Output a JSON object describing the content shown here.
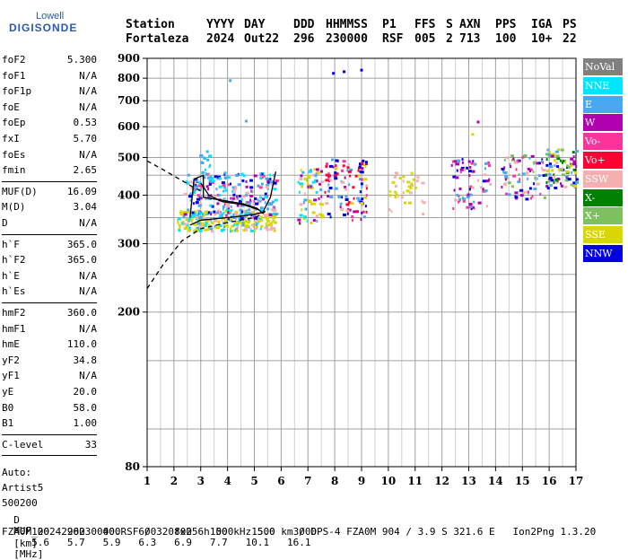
{
  "logo": {
    "line1": "Lowell",
    "line2": "DIGISONDE"
  },
  "header": {
    "labels": [
      "Station",
      "YYYY",
      "DAY",
      "DDD",
      "HHMMSS",
      "P1",
      "FFS",
      "S",
      "AXN",
      "PPS",
      "IGA",
      "PS"
    ],
    "values": [
      "Fortaleza",
      "2024",
      "Out22",
      "296",
      "230000",
      "RSF",
      "005",
      "2",
      "713",
      "100",
      "10+",
      "22"
    ]
  },
  "params": {
    "group1": [
      {
        "k": "foF2",
        "v": "5.300"
      },
      {
        "k": "foF1",
        "v": "N/A"
      },
      {
        "k": "foF1p",
        "v": "N/A"
      },
      {
        "k": "foE",
        "v": "N/A"
      },
      {
        "k": "foEp",
        "v": "0.53"
      },
      {
        "k": "fxI",
        "v": "5.70"
      },
      {
        "k": "foEs",
        "v": "N/A"
      },
      {
        "k": "fmin",
        "v": "2.65"
      }
    ],
    "group2": [
      {
        "k": "MUF(D)",
        "v": "16.09"
      },
      {
        "k": "M(D)",
        "v": "3.04"
      },
      {
        "k": "D",
        "v": "N/A"
      }
    ],
    "group3": [
      {
        "k": "h`F",
        "v": "365.0"
      },
      {
        "k": "h`F2",
        "v": "365.0"
      },
      {
        "k": "h`E",
        "v": "N/A"
      },
      {
        "k": "h`Es",
        "v": "N/A"
      }
    ],
    "group4": [
      {
        "k": "hmF2",
        "v": "360.0"
      },
      {
        "k": "hmF1",
        "v": "N/A"
      },
      {
        "k": "hmE",
        "v": "110.0"
      },
      {
        "k": "yF2",
        "v": "34.8"
      },
      {
        "k": "yF1",
        "v": "N/A"
      },
      {
        "k": "yE",
        "v": "20.0"
      },
      {
        "k": "B0",
        "v": "58.0"
      },
      {
        "k": "B1",
        "v": "1.00"
      }
    ],
    "group5": [
      {
        "k": "C-level",
        "v": "33"
      }
    ],
    "auto": [
      "Auto:",
      "Artist5",
      "500200"
    ]
  },
  "legend": [
    {
      "label": "NoVal",
      "color": "#808080"
    },
    {
      "label": "NNE",
      "color": "#00e5ff"
    },
    {
      "label": "E",
      "color": "#4aa8f0"
    },
    {
      "label": "W",
      "color": "#b000b0"
    },
    {
      "label": "Vo-",
      "color": "#ff3399"
    },
    {
      "label": "Vo+",
      "color": "#ff0033"
    },
    {
      "label": "SSW",
      "color": "#f4b0b0"
    },
    {
      "label": "X-",
      "color": "#008000"
    },
    {
      "label": "X+",
      "color": "#7cc060"
    },
    {
      "label": "SSE",
      "color": "#d8d800"
    },
    {
      "label": "NNW",
      "color": "#0000e0"
    }
  ],
  "chart_data": {
    "type": "scatter",
    "x_ticks": [
      "1",
      "2",
      "3",
      "4",
      "5",
      "6",
      "7",
      "8",
      "9",
      "10",
      "11",
      "12",
      "13",
      "14",
      "15",
      "16",
      "17"
    ],
    "y_ticks": [
      "80",
      "200",
      "300",
      "400",
      "500",
      "600",
      "700",
      "800",
      "900"
    ],
    "xlim": [
      1,
      17
    ],
    "ylim_log": [
      80,
      900
    ],
    "grid": true,
    "legend_position": "right",
    "clusters": [
      {
        "fmin": 2.1,
        "fmax": 5.8,
        "hmin": 325,
        "hmax": 370,
        "n": 260,
        "colors": [
          "SSE",
          "SSE",
          "SSE",
          "SSW",
          "E",
          "NNE"
        ]
      },
      {
        "fmin": 2.3,
        "fmax": 5.8,
        "hmin": 350,
        "hmax": 460,
        "n": 240,
        "colors": [
          "E",
          "NNE",
          "SSW",
          "W",
          "Vo-",
          "NNW",
          "E"
        ]
      },
      {
        "fmin": 2.9,
        "fmax": 3.4,
        "hmin": 440,
        "hmax": 520,
        "n": 18,
        "colors": [
          "E",
          "NNE"
        ]
      },
      {
        "fmin": 6.6,
        "fmax": 7.5,
        "hmin": 340,
        "hmax": 470,
        "n": 70,
        "colors": [
          "SSE",
          "SSE",
          "SSW",
          "E",
          "W",
          "NNE"
        ]
      },
      {
        "fmin": 7.6,
        "fmax": 9.2,
        "hmin": 340,
        "hmax": 500,
        "n": 110,
        "colors": [
          "SSE",
          "SSW",
          "W",
          "E",
          "NNW",
          "Vo-",
          "Vo+"
        ]
      },
      {
        "fmin": 10.0,
        "fmax": 11.3,
        "hmin": 360,
        "hmax": 460,
        "n": 35,
        "colors": [
          "SSE",
          "SSW"
        ]
      },
      {
        "fmin": 12.3,
        "fmax": 13.8,
        "hmin": 370,
        "hmax": 500,
        "n": 70,
        "colors": [
          "W",
          "E",
          "NNW",
          "Vo-",
          "SSW"
        ]
      },
      {
        "fmin": 14.2,
        "fmax": 15.8,
        "hmin": 390,
        "hmax": 510,
        "n": 80,
        "colors": [
          "W",
          "E",
          "Vo-",
          "SSW",
          "NNW",
          "X+"
        ]
      },
      {
        "fmin": 15.8,
        "fmax": 17.0,
        "hmin": 420,
        "hmax": 530,
        "n": 90,
        "colors": [
          "SSE",
          "NNW",
          "E",
          "W",
          "X-",
          "X+",
          "SSW"
        ]
      }
    ],
    "isolated_points": [
      {
        "f": 7.9,
        "h": 830,
        "color": "NNW"
      },
      {
        "f": 8.3,
        "h": 838,
        "color": "NNW"
      },
      {
        "f": 8.95,
        "h": 846,
        "color": "NNW"
      },
      {
        "f": 4.05,
        "h": 795,
        "color": "E"
      },
      {
        "f": 4.65,
        "h": 625,
        "color": "E"
      },
      {
        "f": 13.3,
        "h": 622,
        "color": "W"
      },
      {
        "f": 13.1,
        "h": 578,
        "color": "SSE"
      },
      {
        "f": 3.2,
        "h": 522,
        "color": "E"
      }
    ],
    "profile_dashed": [
      [
        1.0,
        230
      ],
      [
        1.6,
        265
      ],
      [
        2.3,
        305
      ],
      [
        3.0,
        328
      ],
      [
        4.0,
        340
      ],
      [
        5.0,
        350
      ],
      [
        5.3,
        357
      ],
      [
        5.4,
        365
      ]
    ],
    "profile_dashed_upper": [
      [
        1.0,
        490
      ],
      [
        1.6,
        465
      ],
      [
        2.2,
        440
      ],
      [
        2.7,
        420
      ],
      [
        3.0,
        410
      ]
    ],
    "trace_outer": [
      [
        2.6,
        350
      ],
      [
        2.75,
        440
      ],
      [
        3.1,
        450
      ],
      [
        3.1,
        395
      ],
      [
        3.6,
        390
      ],
      [
        4.6,
        380
      ],
      [
        5.1,
        370
      ],
      [
        5.3,
        360
      ],
      [
        5.6,
        395
      ],
      [
        5.8,
        460
      ]
    ],
    "trace_inner": [
      [
        3.0,
        430
      ],
      [
        3.3,
        400
      ],
      [
        3.8,
        385
      ],
      [
        4.6,
        378
      ],
      [
        5.2,
        366
      ]
    ],
    "trace_lower": [
      [
        2.6,
        335
      ],
      [
        3.0,
        345
      ],
      [
        3.6,
        348
      ],
      [
        4.3,
        352
      ],
      [
        5.0,
        357
      ],
      [
        5.4,
        362
      ]
    ]
  },
  "bottom": {
    "d_label": "D",
    "d_values": [
      "100",
      "200",
      "400",
      "600",
      "800",
      "1000",
      "1500",
      "3000"
    ],
    "d_unit": "[km]",
    "muf_label": "MUF",
    "muf_values": [
      "5.6",
      "5.7",
      "5.9",
      "6.3",
      "6.9",
      "7.7",
      "10.1",
      "16.1"
    ],
    "muf_unit": "[MHz]",
    "footer": "FZA0M_2024296230000.RSF / 320fx256h 50 kHz 5.0 km / DPS-4 FZA0M 904 / 3.9 S 321.6 E   Ion2Png 1.3.20"
  }
}
